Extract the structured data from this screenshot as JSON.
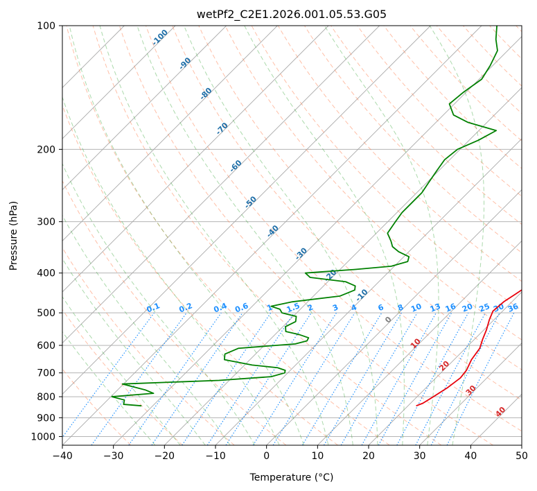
{
  "chart_data": {
    "type": "line",
    "subtype": "skew-t log-p",
    "title": "wetPf2_C2E1.2026.001.05.53.G05",
    "xlabel": "Temperature (°C)",
    "ylabel": "Pressure (hPa)",
    "xlim": [
      -40,
      50
    ],
    "ylim": [
      1050,
      100
    ],
    "x_ticks": [
      -40,
      -30,
      -20,
      -10,
      0,
      10,
      20,
      30,
      40,
      50
    ],
    "x_tick_labels": [
      "−40",
      "−30",
      "−20",
      "−10",
      "0",
      "10",
      "20",
      "30",
      "40",
      "50"
    ],
    "y_ticks": [
      100,
      200,
      300,
      400,
      500,
      600,
      700,
      800,
      900,
      1000
    ],
    "y_tick_labels": [
      "100",
      "200",
      "300",
      "400",
      "500",
      "600",
      "700",
      "800",
      "900",
      "1000"
    ],
    "colors": {
      "temperature": "#e8000b",
      "dewpoint": "#008000",
      "mixing_ratio": "#1e90ff",
      "dry_adiabat": "#ff7f50",
      "moist_adiabat": "#2ca02c",
      "grid": "#a9a9a9",
      "sat_label": "#1f6fa8",
      "moist_label": "#d62728"
    },
    "series": [
      {
        "name": "Temperature",
        "pressure": [
          842,
          830,
          800,
          760,
          720,
          690,
          650,
          610,
          580,
          550,
          520,
          495,
          470,
          450,
          430,
          410,
          390,
          370,
          350,
          320,
          290,
          260,
          230,
          205,
          185,
          170,
          155,
          140,
          128,
          118,
          110,
          100
        ],
        "values": [
          21.6,
          22.4,
          23.2,
          24.2,
          24.8,
          24.5,
          23.4,
          22.8,
          21.6,
          20.5,
          19.1,
          18.1,
          18.4,
          19.2,
          20.0,
          20.8,
          20.9,
          18.9,
          17.0,
          12.8,
          8.6,
          3.8,
          -0.9,
          -4.9,
          -7.9,
          -8.6,
          -8.7,
          -10.2,
          -12.0,
          -14.0,
          -15.8,
          -17.9
        ]
      },
      {
        "name": "Dewpoint",
        "pressure": [
          842,
          835,
          815,
          800,
          785,
          770,
          745,
          730,
          715,
          700,
          690,
          680,
          670,
          650,
          630,
          610,
          595,
          585,
          575,
          565,
          555,
          540,
          525,
          510,
          500,
          490,
          482,
          470,
          455,
          440,
          430,
          420,
          410,
          400,
          392,
          385,
          375,
          365,
          355,
          345,
          335,
          320,
          300,
          285,
          270,
          255,
          240,
          225,
          212,
          200,
          190,
          180,
          172,
          165,
          155,
          145,
          135,
          125,
          115,
          108,
          100
        ],
        "values": [
          -32.2,
          -36.0,
          -36.7,
          -39.8,
          -32.3,
          -34.6,
          -40.2,
          -22.0,
          -12.5,
          -10.6,
          -11.0,
          -13.0,
          -18.5,
          -25.0,
          -26.0,
          -24.5,
          -14.2,
          -12.5,
          -12.8,
          -15.2,
          -18.5,
          -19.5,
          -18.5,
          -19.4,
          -22.9,
          -24.0,
          -26.3,
          -23.0,
          -14.8,
          -13.1,
          -13.8,
          -16.5,
          -24.3,
          -26.1,
          -17.0,
          -10.6,
          -8.3,
          -9.0,
          -12.0,
          -14.2,
          -15.5,
          -17.8,
          -18.5,
          -19.0,
          -19.0,
          -19.0,
          -19.7,
          -20.4,
          -21.0,
          -20.5,
          -18.2,
          -16.6,
          -23.7,
          -28.0,
          -31.0,
          -30.5,
          -29.5,
          -30.5,
          -32.0,
          -34.5,
          -37.0
        ]
      }
    ],
    "background_lines": {
      "isobars_hPa": [
        100,
        200,
        300,
        400,
        500,
        600,
        700,
        800,
        900,
        1000
      ],
      "isotherms_C": [
        -110,
        -100,
        -90,
        -80,
        -70,
        -60,
        -50,
        -40,
        -30,
        -20,
        -10,
        0,
        10,
        20,
        30,
        40,
        50
      ],
      "dry_adiabats_C": [
        -30,
        -20,
        -10,
        0,
        10,
        20,
        30,
        40,
        50,
        60,
        70,
        80,
        90,
        100,
        110,
        120,
        130,
        140,
        150,
        160,
        170,
        180,
        190,
        200
      ],
      "moist_adiabats_C": [
        -25,
        -20,
        -15,
        -10,
        -5,
        0,
        5,
        10,
        15,
        20,
        25,
        30,
        35
      ],
      "mixing_ratio_g_per_kg": [
        0.1,
        0.2,
        0.4,
        0.6,
        1,
        1.5,
        2,
        3,
        4,
        6,
        8,
        10,
        13,
        16,
        20,
        25,
        30,
        36
      ]
    },
    "mixing_ratio_labels": [
      "0.1",
      "0.2",
      "0.4",
      "0.6",
      "1",
      "1.5",
      "2",
      "3",
      "4",
      "6",
      "8",
      "10",
      "13",
      "16",
      "20",
      "25",
      "30",
      "36"
    ],
    "saturation_labels": [
      {
        "text": "-100",
        "temp": -100,
        "pressure": 108
      },
      {
        "text": "-90",
        "temp": -90,
        "pressure": 125
      },
      {
        "text": "-80",
        "temp": -80,
        "pressure": 148
      },
      {
        "text": "-70",
        "temp": -70,
        "pressure": 180
      },
      {
        "text": "-60",
        "temp": -60,
        "pressure": 222
      },
      {
        "text": "-50",
        "temp": -50,
        "pressure": 272
      },
      {
        "text": "-40",
        "temp": -40,
        "pressure": 320
      },
      {
        "text": "-30",
        "temp": -30,
        "pressure": 363
      },
      {
        "text": "-20",
        "temp": -20,
        "pressure": 410
      },
      {
        "text": "-10",
        "temp": -10,
        "pressure": 458
      }
    ],
    "moist_labels": [
      {
        "text": "0",
        "temp": 0,
        "pressure": 525
      },
      {
        "text": "10",
        "temp": 10,
        "pressure": 600
      },
      {
        "text": "20",
        "temp": 20,
        "pressure": 680
      },
      {
        "text": "30",
        "temp": 30,
        "pressure": 780
      },
      {
        "text": "40",
        "temp": 40,
        "pressure": 880
      }
    ]
  }
}
